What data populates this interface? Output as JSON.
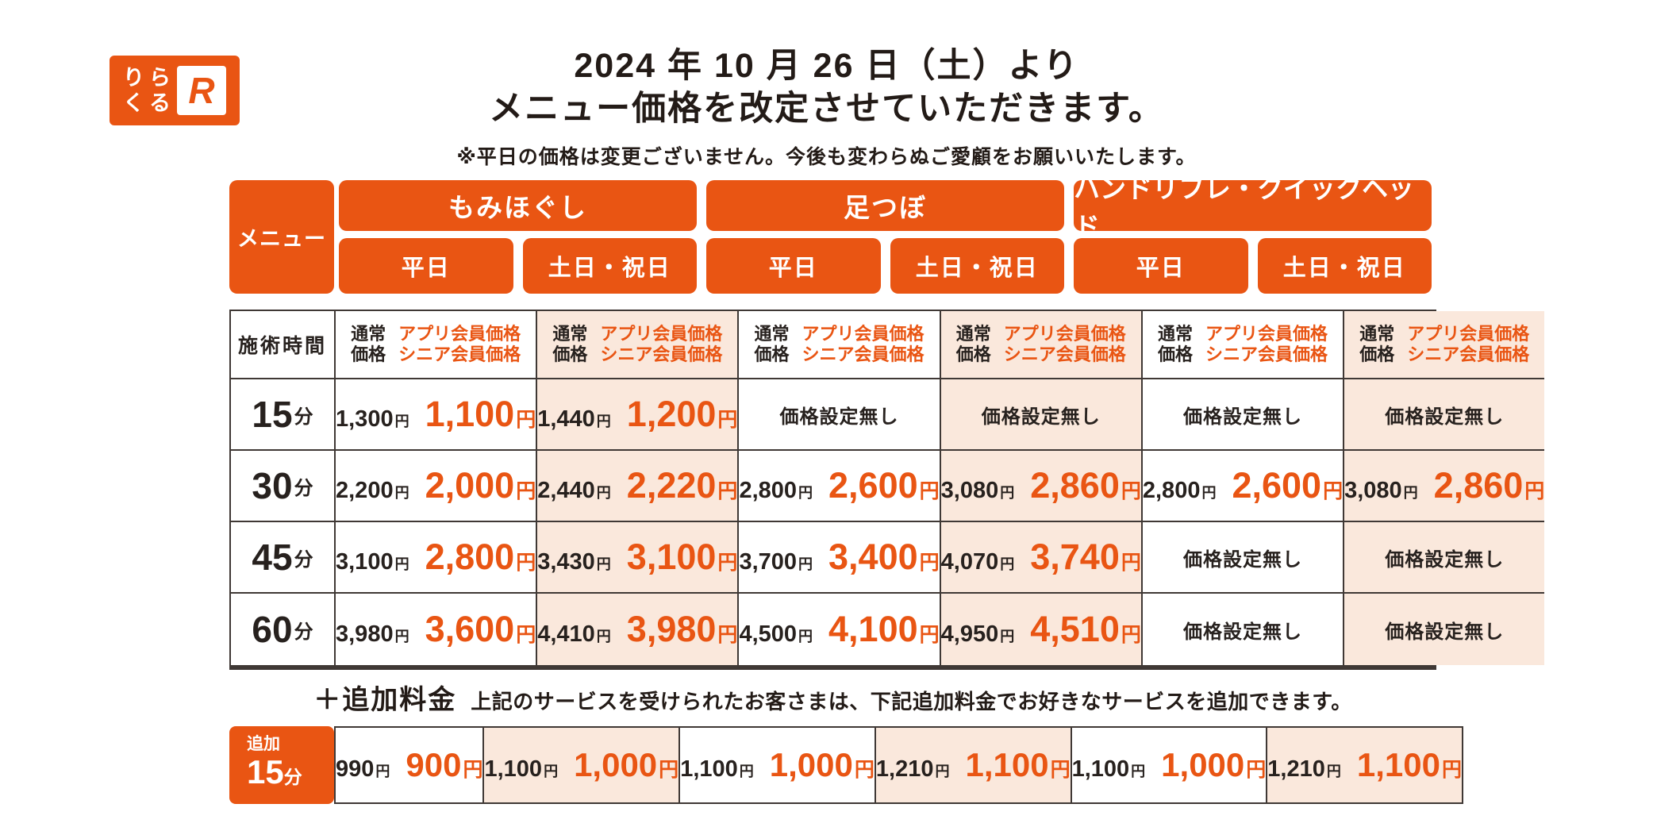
{
  "brand": {
    "kana": [
      "り",
      "ら",
      "く",
      "る"
    ],
    "mark": "R"
  },
  "header": {
    "title_line1": "2024 年 10 月 26 日（土）より",
    "title_line2": "メニュー価格を改定させていただきます。",
    "note": "※平日の価格は変更ございません。今後も変わらぬご愛顧をお願いいたします。"
  },
  "colors": {
    "accent": "#E95513",
    "peach": "#FAE8DC",
    "ink": "#27211E",
    "border": "#3F3835"
  },
  "table": {
    "menu_label": "メニュー",
    "time_header": "施術時間",
    "yen": "円",
    "no_price_label": "価格設定無し",
    "groups": [
      "もみほぐし",
      "足つぼ",
      "ハンドリフレ・クイックヘッド"
    ],
    "day_headers": [
      "平日",
      "土日・祝日",
      "平日",
      "土日・祝日",
      "平日",
      "土日・祝日"
    ],
    "price_header": {
      "normal_l1": "通常",
      "normal_l2": "価格",
      "member_l1": "アプリ会員価格",
      "member_l2": "シニア会員価格"
    },
    "rows": [
      {
        "time": "15",
        "unit": "分",
        "cells": [
          {
            "normal": "1,300",
            "member": "1,100"
          },
          {
            "normal": "1,440",
            "member": "1,200"
          },
          null,
          null,
          null,
          null
        ]
      },
      {
        "time": "30",
        "unit": "分",
        "cells": [
          {
            "normal": "2,200",
            "member": "2,000"
          },
          {
            "normal": "2,440",
            "member": "2,220"
          },
          {
            "normal": "2,800",
            "member": "2,600"
          },
          {
            "normal": "3,080",
            "member": "2,860"
          },
          {
            "normal": "2,800",
            "member": "2,600"
          },
          {
            "normal": "3,080",
            "member": "2,860"
          }
        ]
      },
      {
        "time": "45",
        "unit": "分",
        "cells": [
          {
            "normal": "3,100",
            "member": "2,800"
          },
          {
            "normal": "3,430",
            "member": "3,100"
          },
          {
            "normal": "3,700",
            "member": "3,400"
          },
          {
            "normal": "4,070",
            "member": "3,740"
          },
          null,
          null
        ]
      },
      {
        "time": "60",
        "unit": "分",
        "cells": [
          {
            "normal": "3,980",
            "member": "3,600"
          },
          {
            "normal": "4,410",
            "member": "3,980"
          },
          {
            "normal": "4,500",
            "member": "4,100"
          },
          {
            "normal": "4,950",
            "member": "4,510"
          },
          null,
          null
        ]
      }
    ]
  },
  "addon": {
    "title": "＋追加料金",
    "description": "上記のサービスを受けられたお客さまは、下記追加料金でお好きなサービスを追加できます。",
    "badge_top": "追加",
    "badge_num": "15",
    "badge_unit": "分",
    "cells": [
      {
        "normal": "990",
        "member": "900"
      },
      {
        "normal": "1,100",
        "member": "1,000"
      },
      {
        "normal": "1,100",
        "member": "1,000"
      },
      {
        "normal": "1,210",
        "member": "1,100"
      },
      {
        "normal": "1,100",
        "member": "1,000"
      },
      {
        "normal": "1,210",
        "member": "1,100"
      }
    ]
  }
}
